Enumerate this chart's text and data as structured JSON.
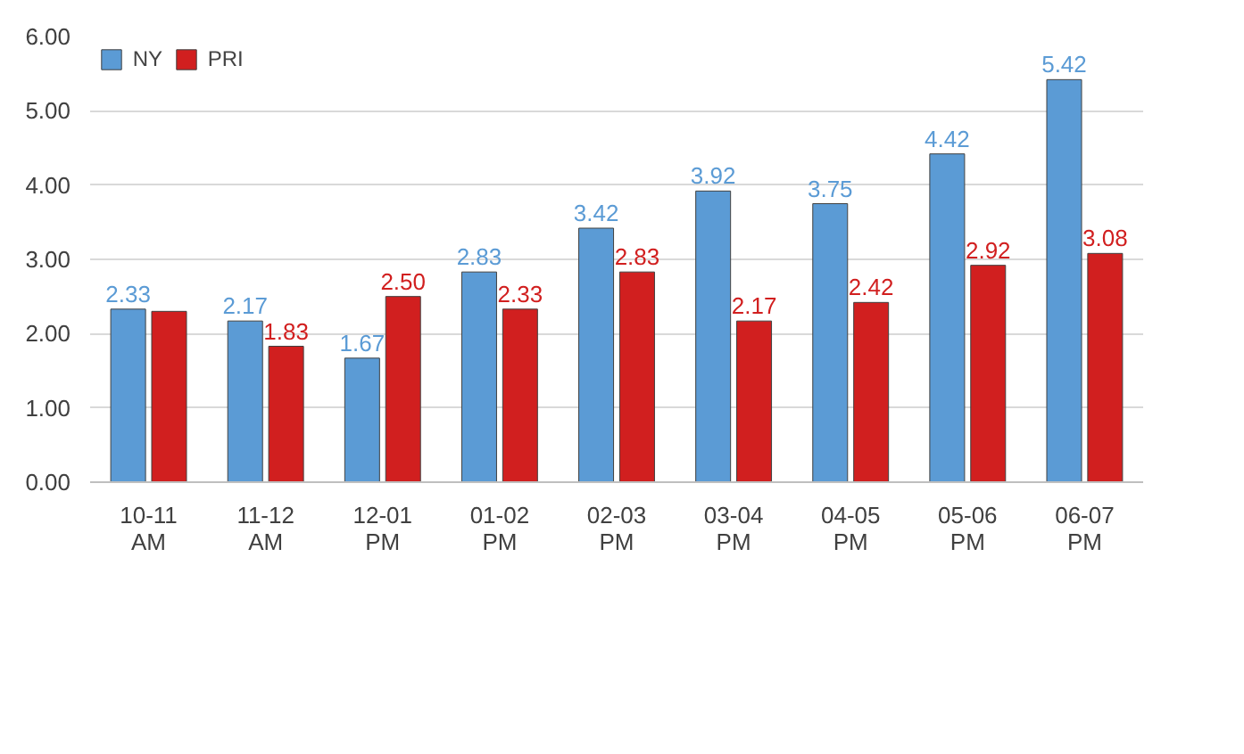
{
  "chart_data": {
    "type": "bar",
    "categories": [
      "10-11\nAM",
      "11-12\nAM",
      "12-01\nPM",
      "01-02\nPM",
      "02-03\nPM",
      "03-04\nPM",
      "04-05\nPM",
      "05-06\nPM",
      "06-07\nPM"
    ],
    "series": [
      {
        "name": "NY",
        "color": "#5b9bd5",
        "values": [
          2.33,
          2.17,
          1.67,
          2.83,
          3.42,
          3.92,
          3.75,
          4.42,
          5.42
        ],
        "value_labels": [
          "2.33",
          "2.17",
          "1.67",
          "2.83",
          "3.42",
          "3.92",
          "3.75",
          "4.42",
          "5.42"
        ]
      },
      {
        "name": "PRI",
        "color": "#d11f1f",
        "values": [
          2.3,
          1.83,
          2.5,
          2.33,
          2.83,
          2.17,
          2.42,
          2.92,
          3.08
        ],
        "value_labels": [
          null,
          "1.83",
          "2.50",
          "2.33",
          "2.83",
          "2.17",
          "2.42",
          "2.92",
          "3.08"
        ]
      }
    ],
    "ylim": [
      0,
      6
    ],
    "yticks": [
      {
        "value": 0,
        "label": "0.00"
      },
      {
        "value": 1,
        "label": "1.00"
      },
      {
        "value": 2,
        "label": "2.00"
      },
      {
        "value": 3,
        "label": "3.00"
      },
      {
        "value": 4,
        "label": "4.00"
      },
      {
        "value": 5,
        "label": "5.00"
      },
      {
        "value": 6,
        "label": "6.00"
      }
    ],
    "grid": "y",
    "legend": "top left"
  }
}
